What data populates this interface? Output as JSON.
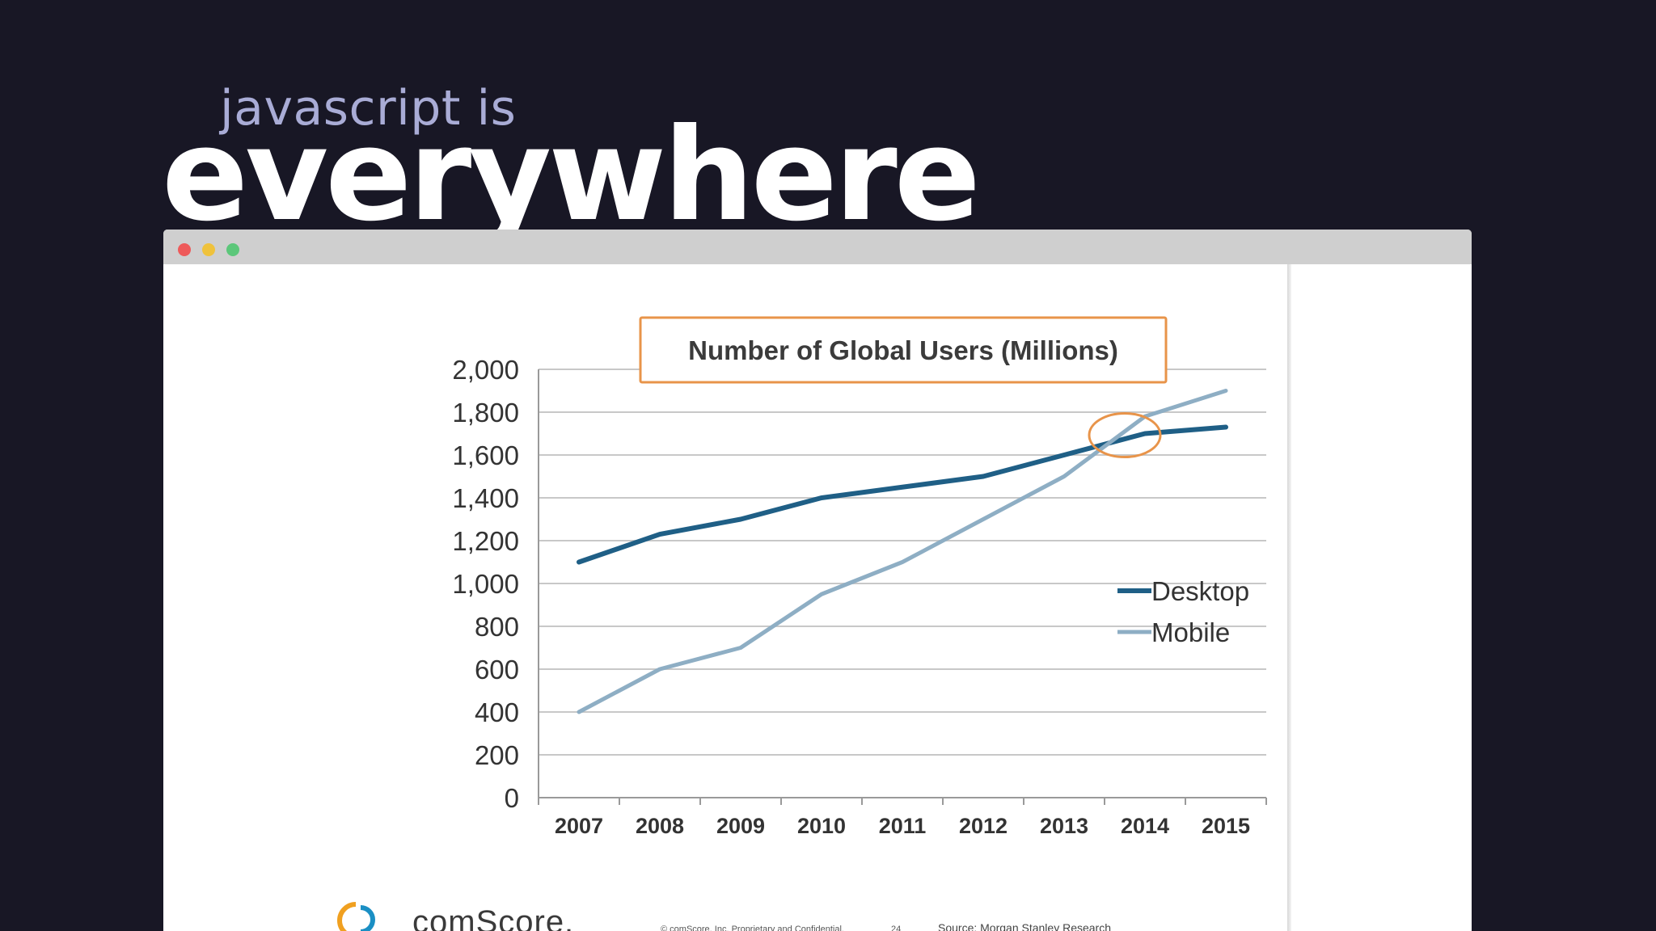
{
  "heading": {
    "subtitle": "javascript is",
    "title": "everywhere"
  },
  "colors": {
    "background": "#181725",
    "subtitle": "#a9acd6",
    "desktop": "#1f5f86",
    "mobile": "#8eaec4",
    "highlight": "#e8944a"
  },
  "chart_data": {
    "type": "line",
    "title": "Number of Global Users (Millions)",
    "categories": [
      "2007",
      "2008",
      "2009",
      "2010",
      "2011",
      "2012",
      "2013",
      "2014",
      "2015"
    ],
    "series": [
      {
        "name": "Desktop",
        "values": [
          1100,
          1230,
          1300,
          1400,
          1450,
          1500,
          1600,
          1700,
          1730
        ]
      },
      {
        "name": "Mobile",
        "values": [
          400,
          600,
          700,
          950,
          1100,
          1300,
          1500,
          1780,
          1900
        ]
      }
    ],
    "y_ticks": [
      "2,000",
      "1,800",
      "1,600",
      "1,400",
      "1,200",
      "1,000",
      "800",
      "600",
      "400",
      "200",
      "0"
    ],
    "ylim": [
      0,
      2000
    ],
    "grid": true,
    "legend_position": "right",
    "highlight": {
      "category": "2014",
      "value": 1700,
      "shape": "circle"
    }
  },
  "footer": {
    "logo": "comScore.",
    "copyright": "© comScore, Inc. Proprietary and Confidential.",
    "page": "24",
    "source": "Source: Morgan Stanley Research"
  }
}
